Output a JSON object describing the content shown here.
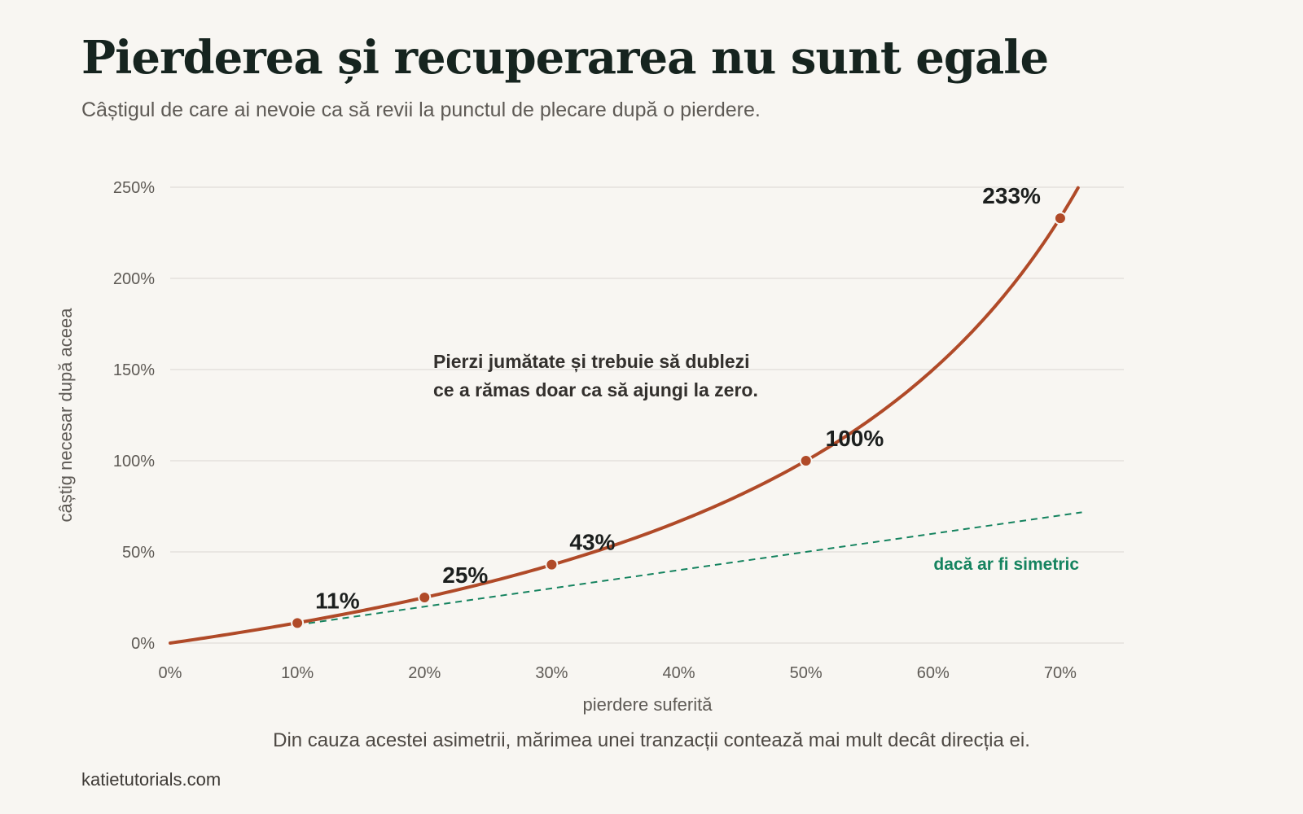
{
  "title": "Pierderea și recuperarea nu sunt egale",
  "subtitle": "Câștigul de care ai nevoie ca să revii la punctul de plecare după o pierdere.",
  "footnote": "Din cauza acestei asimetrii, mărimea unei tranzacții contează mai mult decât direcția ei.",
  "source": "katietutorials.com",
  "colors": {
    "curve": "#b04a28",
    "symmetric": "#15835f",
    "grid": "#e4e1dc",
    "background": "#f8f6f2"
  },
  "chart_data": {
    "type": "line",
    "xlabel": "pierdere suferită",
    "ylabel": "câștig necesar după aceea",
    "xlim": [
      0,
      0.75
    ],
    "ylim": [
      0,
      2.5
    ],
    "x_ticks": [
      "0%",
      "10%",
      "20%",
      "30%",
      "40%",
      "50%",
      "60%",
      "70%"
    ],
    "y_ticks": [
      "0%",
      "50%",
      "100%",
      "150%",
      "200%",
      "250%"
    ],
    "grid": "horizontal",
    "series": [
      {
        "key": "recovery",
        "formula": "x / (1 - x)",
        "x_range": [
          0,
          0.714
        ],
        "points": [
          {
            "x": 0.1,
            "y": 0.11,
            "label": "11%"
          },
          {
            "x": 0.2,
            "y": 0.25,
            "label": "25%"
          },
          {
            "x": 0.3,
            "y": 0.43,
            "label": "43%"
          },
          {
            "x": 0.5,
            "y": 1.0,
            "label": "100%"
          },
          {
            "x": 0.7,
            "y": 2.33,
            "label": "233%"
          }
        ]
      },
      {
        "key": "symmetric",
        "name": "dacă ar fi simetric",
        "formula": "y = x",
        "x_range": [
          0.1,
          0.717
        ]
      }
    ],
    "annotations": [
      "Pierzi jumătate și trebuie să dublezi",
      "ce a rămas doar ca să ajungi la zero."
    ]
  }
}
